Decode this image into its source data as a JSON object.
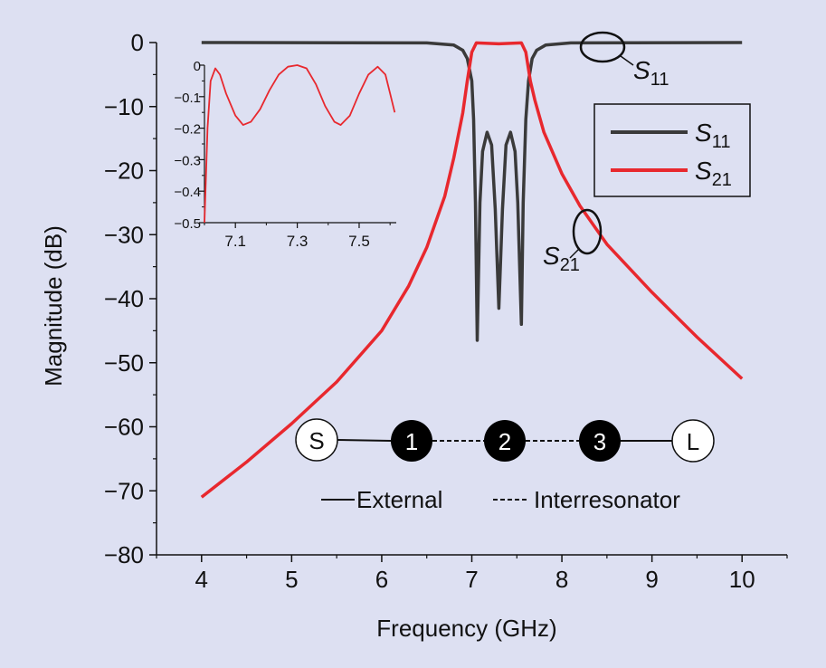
{
  "colors": {
    "background": "#dde0f2",
    "s11": "#3a3a3a",
    "s21": "#e8282e",
    "axis": "#111111"
  },
  "chart_data": {
    "type": "line",
    "xlabel": "Frequency (GHz)",
    "ylabel": "Magnitude (dB)",
    "xlim": [
      3.5,
      10.5
    ],
    "ylim": [
      -80,
      0
    ],
    "xticks": [
      "4",
      "5",
      "6",
      "7",
      "8",
      "9",
      "10"
    ],
    "yticks": [
      "0",
      "−10",
      "−20",
      "−30",
      "−40",
      "−50",
      "−60",
      "−70",
      "−80"
    ],
    "grid": false,
    "legend_position": "top-right",
    "series": [
      {
        "name": "S11",
        "name_main": "S",
        "name_sub": "11",
        "color": "#3a3a3a",
        "points": [
          [
            4.0,
            0
          ],
          [
            6.5,
            -0.05
          ],
          [
            6.8,
            -0.4
          ],
          [
            6.9,
            -1.2
          ],
          [
            6.95,
            -2.5
          ],
          [
            7.0,
            -6
          ],
          [
            7.02,
            -12
          ],
          [
            7.04,
            -25
          ],
          [
            7.06,
            -46.5
          ],
          [
            7.09,
            -25
          ],
          [
            7.12,
            -17
          ],
          [
            7.17,
            -14
          ],
          [
            7.22,
            -16
          ],
          [
            7.26,
            -26
          ],
          [
            7.3,
            -41.5
          ],
          [
            7.34,
            -26
          ],
          [
            7.38,
            -16
          ],
          [
            7.43,
            -14
          ],
          [
            7.48,
            -17
          ],
          [
            7.51,
            -25
          ],
          [
            7.55,
            -44
          ],
          [
            7.57,
            -25
          ],
          [
            7.6,
            -12
          ],
          [
            7.63,
            -6
          ],
          [
            7.67,
            -2.5
          ],
          [
            7.72,
            -1.2
          ],
          [
            7.82,
            -0.4
          ],
          [
            8.1,
            -0.05
          ],
          [
            10.0,
            0
          ]
        ]
      },
      {
        "name": "S21",
        "name_main": "S",
        "name_sub": "21",
        "color": "#e8282e",
        "points": [
          [
            4.0,
            -71
          ],
          [
            4.5,
            -65.5
          ],
          [
            5.0,
            -59.5
          ],
          [
            5.5,
            -53
          ],
          [
            6.0,
            -45
          ],
          [
            6.3,
            -38
          ],
          [
            6.5,
            -32
          ],
          [
            6.7,
            -24
          ],
          [
            6.8,
            -18
          ],
          [
            6.9,
            -11
          ],
          [
            6.95,
            -6
          ],
          [
            7.0,
            -1.5
          ],
          [
            7.05,
            -0.05
          ],
          [
            7.3,
            -0.2
          ],
          [
            7.55,
            -0.05
          ],
          [
            7.6,
            -1.5
          ],
          [
            7.65,
            -6
          ],
          [
            7.7,
            -9
          ],
          [
            7.8,
            -14
          ],
          [
            8.0,
            -20.5
          ],
          [
            8.2,
            -25.5
          ],
          [
            8.5,
            -31.5
          ],
          [
            9.0,
            -39
          ],
          [
            9.5,
            -46
          ],
          [
            10.0,
            -52.5
          ]
        ]
      }
    ],
    "annotations": [
      {
        "id": "s11_callout",
        "main": "S",
        "sub": "11"
      },
      {
        "id": "s21_callout",
        "main": "S",
        "sub": "21"
      }
    ],
    "inset": {
      "type": "line",
      "xlim": [
        7.0,
        7.62
      ],
      "ylim": [
        -0.5,
        0
      ],
      "xticks": [
        "7.1",
        "7.3",
        "7.5"
      ],
      "yticks": [
        "0",
        "−0.1",
        "−0.2",
        "−0.3",
        "−0.4",
        "−0.5"
      ],
      "series": [
        {
          "name": "S21",
          "color": "#e8282e",
          "points": [
            [
              7.0,
              -0.5
            ],
            [
              7.01,
              -0.2
            ],
            [
              7.02,
              -0.05
            ],
            [
              7.035,
              -0.01
            ],
            [
              7.05,
              -0.03
            ],
            [
              7.07,
              -0.09
            ],
            [
              7.1,
              -0.16
            ],
            [
              7.125,
              -0.19
            ],
            [
              7.15,
              -0.18
            ],
            [
              7.18,
              -0.14
            ],
            [
              7.21,
              -0.08
            ],
            [
              7.24,
              -0.03
            ],
            [
              7.27,
              -0.005
            ],
            [
              7.3,
              0
            ],
            [
              7.33,
              -0.01
            ],
            [
              7.36,
              -0.06
            ],
            [
              7.39,
              -0.13
            ],
            [
              7.42,
              -0.18
            ],
            [
              7.44,
              -0.19
            ],
            [
              7.47,
              -0.16
            ],
            [
              7.5,
              -0.09
            ],
            [
              7.53,
              -0.03
            ],
            [
              7.56,
              -0.005
            ],
            [
              7.585,
              -0.03
            ],
            [
              7.6,
              -0.09
            ],
            [
              7.615,
              -0.15
            ]
          ]
        }
      ]
    },
    "topology": {
      "nodes": [
        "S",
        "1",
        "2",
        "3",
        "L"
      ],
      "legend": {
        "external": "External",
        "interresonator": "Interresonator"
      }
    }
  }
}
